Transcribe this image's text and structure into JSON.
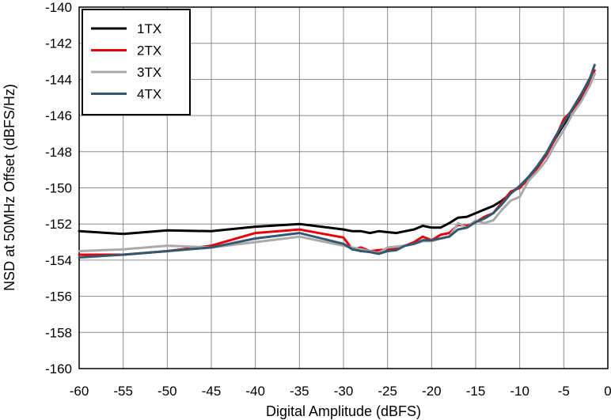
{
  "chart_data": {
    "type": "line",
    "title": "",
    "xlabel": "Digital Amplitude (dBFS)",
    "ylabel": "NSD at 50MHz Offset (dBFS/Hz)",
    "xlim": [
      -60,
      0
    ],
    "ylim": [
      -160,
      -140
    ],
    "xticks": [
      -60,
      -55,
      -50,
      -45,
      -40,
      -35,
      -30,
      -25,
      -20,
      -15,
      -10,
      -5,
      0
    ],
    "yticks": [
      -160,
      -158,
      -156,
      -154,
      -152,
      -150,
      -148,
      -146,
      -144,
      -142,
      -140
    ],
    "xtick_labels": [
      "-60",
      "-55",
      "-50",
      "-45",
      "-40",
      "-35",
      "-30",
      "-25",
      "-20",
      "-15",
      "-10",
      "-5",
      "0"
    ],
    "ytick_labels": [
      "-160",
      "-158",
      "-156",
      "-154",
      "-152",
      "-150",
      "-148",
      "-146",
      "-144",
      "-142",
      "-140"
    ],
    "grid": true,
    "legend_position": "top-left",
    "series": [
      {
        "name": "1TX",
        "color": "#000000",
        "points": [
          [
            -60,
            -152.4
          ],
          [
            -55,
            -152.55
          ],
          [
            -50,
            -152.35
          ],
          [
            -45,
            -152.4
          ],
          [
            -40,
            -152.15
          ],
          [
            -35,
            -152.0
          ],
          [
            -30,
            -152.3
          ],
          [
            -29,
            -152.4
          ],
          [
            -28,
            -152.4
          ],
          [
            -27,
            -152.5
          ],
          [
            -26,
            -152.4
          ],
          [
            -25,
            -152.45
          ],
          [
            -24,
            -152.5
          ],
          [
            -23,
            -152.4
          ],
          [
            -22,
            -152.3
          ],
          [
            -21,
            -152.1
          ],
          [
            -20,
            -152.2
          ],
          [
            -19,
            -152.2
          ],
          [
            -18,
            -151.95
          ],
          [
            -17,
            -151.65
          ],
          [
            -16,
            -151.6
          ],
          [
            -15,
            -151.4
          ],
          [
            -14,
            -151.2
          ],
          [
            -13,
            -151.0
          ],
          [
            -12,
            -150.7
          ],
          [
            -11,
            -150.3
          ],
          [
            -10,
            -149.9
          ],
          [
            -9,
            -149.4
          ],
          [
            -8,
            -148.8
          ],
          [
            -7,
            -148.1
          ],
          [
            -6,
            -147.3
          ],
          [
            -5,
            -146.5
          ],
          [
            -4,
            -145.9
          ],
          [
            -3,
            -145.1
          ],
          [
            -2,
            -144.2
          ],
          [
            -1.5,
            -143.7
          ]
        ]
      },
      {
        "name": "2TX",
        "color": "#e8000b",
        "points": [
          [
            -60,
            -153.7
          ],
          [
            -55,
            -153.7
          ],
          [
            -50,
            -153.5
          ],
          [
            -45,
            -153.2
          ],
          [
            -40,
            -152.5
          ],
          [
            -35,
            -152.3
          ],
          [
            -30,
            -152.75
          ],
          [
            -29,
            -153.4
          ],
          [
            -28,
            -153.3
          ],
          [
            -27,
            -153.5
          ],
          [
            -26,
            -153.45
          ],
          [
            -25,
            -153.4
          ],
          [
            -24,
            -153.35
          ],
          [
            -23,
            -153.2
          ],
          [
            -22,
            -153.0
          ],
          [
            -21,
            -152.7
          ],
          [
            -20,
            -152.9
          ],
          [
            -19,
            -152.6
          ],
          [
            -18,
            -152.5
          ],
          [
            -17,
            -152.05
          ],
          [
            -16,
            -152.1
          ],
          [
            -15,
            -151.9
          ],
          [
            -14,
            -151.6
          ],
          [
            -13,
            -151.4
          ],
          [
            -12,
            -150.8
          ],
          [
            -11,
            -150.2
          ],
          [
            -10,
            -150.0
          ],
          [
            -9,
            -149.5
          ],
          [
            -8,
            -148.9
          ],
          [
            -7,
            -148.2
          ],
          [
            -6,
            -147.3
          ],
          [
            -5,
            -146.2
          ],
          [
            -4,
            -145.7
          ],
          [
            -3,
            -144.9
          ],
          [
            -2,
            -144.0
          ],
          [
            -1.5,
            -143.5
          ]
        ]
      },
      {
        "name": "3TX",
        "color": "#aaaaaa",
        "points": [
          [
            -60,
            -153.5
          ],
          [
            -55,
            -153.4
          ],
          [
            -50,
            -153.2
          ],
          [
            -45,
            -153.3
          ],
          [
            -40,
            -153.0
          ],
          [
            -35,
            -152.7
          ],
          [
            -30,
            -153.2
          ],
          [
            -29,
            -153.3
          ],
          [
            -28,
            -153.4
          ],
          [
            -27,
            -153.5
          ],
          [
            -26,
            -153.6
          ],
          [
            -25,
            -153.3
          ],
          [
            -24,
            -153.25
          ],
          [
            -23,
            -153.2
          ],
          [
            -22,
            -153.1
          ],
          [
            -21,
            -152.95
          ],
          [
            -20,
            -152.95
          ],
          [
            -19,
            -152.8
          ],
          [
            -18,
            -152.7
          ],
          [
            -17,
            -151.95
          ],
          [
            -16,
            -152.2
          ],
          [
            -15,
            -151.8
          ],
          [
            -14,
            -151.95
          ],
          [
            -13,
            -151.8
          ],
          [
            -12,
            -151.2
          ],
          [
            -11,
            -150.7
          ],
          [
            -10,
            -150.5
          ],
          [
            -9,
            -149.6
          ],
          [
            -8,
            -149.1
          ],
          [
            -7,
            -148.5
          ],
          [
            -6,
            -147.6
          ],
          [
            -5,
            -146.8
          ],
          [
            -4,
            -145.9
          ],
          [
            -3,
            -145.2
          ],
          [
            -2,
            -144.3
          ],
          [
            -1.5,
            -143.7
          ]
        ]
      },
      {
        "name": "4TX",
        "color": "#34586f",
        "points": [
          [
            -60,
            -153.85
          ],
          [
            -55,
            -153.7
          ],
          [
            -50,
            -153.5
          ],
          [
            -45,
            -153.3
          ],
          [
            -40,
            -152.8
          ],
          [
            -35,
            -152.5
          ],
          [
            -30,
            -153.1
          ],
          [
            -29,
            -153.4
          ],
          [
            -28,
            -153.5
          ],
          [
            -27,
            -153.55
          ],
          [
            -26,
            -153.65
          ],
          [
            -25,
            -153.5
          ],
          [
            -24,
            -153.45
          ],
          [
            -23,
            -153.2
          ],
          [
            -22,
            -153.1
          ],
          [
            -21,
            -152.9
          ],
          [
            -20,
            -152.9
          ],
          [
            -19,
            -152.8
          ],
          [
            -18,
            -152.7
          ],
          [
            -17,
            -152.3
          ],
          [
            -16,
            -152.2
          ],
          [
            -15,
            -151.9
          ],
          [
            -14,
            -151.7
          ],
          [
            -13,
            -151.4
          ],
          [
            -12,
            -150.9
          ],
          [
            -11,
            -150.3
          ],
          [
            -10,
            -149.9
          ],
          [
            -9,
            -149.4
          ],
          [
            -8,
            -148.8
          ],
          [
            -7,
            -148.1
          ],
          [
            -6,
            -147.2
          ],
          [
            -5,
            -146.4
          ],
          [
            -4,
            -145.6
          ],
          [
            -3,
            -144.8
          ],
          [
            -2,
            -143.9
          ],
          [
            -1.5,
            -143.2
          ]
        ]
      }
    ]
  }
}
